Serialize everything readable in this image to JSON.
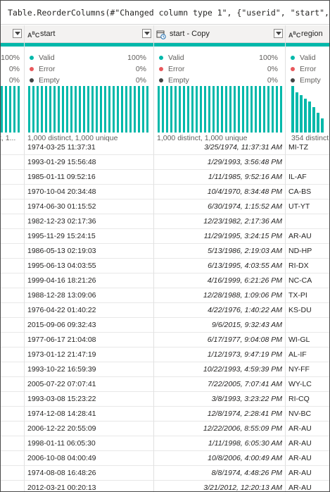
{
  "formula": "Table.ReorderColumns(#\"Changed column type 1\", {\"userid\", \"start\", \"s",
  "columns": [
    {
      "name": "",
      "type_label": "",
      "valid_label": "Valid",
      "valid_pct": "100%",
      "error_label": "Error",
      "error_pct": "0%",
      "empty_label": "Empty",
      "empty_pct": "0%",
      "distinct": "t, 1..."
    },
    {
      "name": "start",
      "type_label": "ABC",
      "valid_label": "Valid",
      "valid_pct": "100%",
      "error_label": "Error",
      "error_pct": "0%",
      "empty_label": "Empty",
      "empty_pct": "0%",
      "distinct": "1,000 distinct, 1,000 unique"
    },
    {
      "name": "start - Copy",
      "type_label": "",
      "valid_label": "Valid",
      "valid_pct": "100%",
      "error_label": "Error",
      "error_pct": "0%",
      "empty_label": "Empty",
      "empty_pct": "0%",
      "distinct": "1,000 distinct, 1,000 unique"
    },
    {
      "name": "region",
      "type_label": "ABC",
      "valid_label": "Valid",
      "valid_pct": "",
      "error_label": "Error",
      "error_pct": "",
      "empty_label": "Empty",
      "empty_pct": "",
      "distinct": "354 distinct"
    }
  ],
  "colors": {
    "valid": "#01b8aa",
    "error": "#e8585c",
    "empty": "#444444",
    "bar": "#01b8aa"
  },
  "region_hist_levels": [
    1.0,
    0.86,
    0.8,
    0.72,
    0.66,
    0.55,
    0.42,
    0.3
  ],
  "rows": [
    {
      "start": "1974-03-25 11:37:31",
      "copy": "3/25/1974, 11:37:31 AM",
      "region": "MI-TZ"
    },
    {
      "start": "1993-01-29 15:56:48",
      "copy": "1/29/1993, 3:56:48 PM",
      "region": ""
    },
    {
      "start": "1985-01-11 09:52:16",
      "copy": "1/11/1985, 9:52:16 AM",
      "region": "IL-AF"
    },
    {
      "start": "1970-10-04 20:34:48",
      "copy": "10/4/1970, 8:34:48 PM",
      "region": "CA-BS"
    },
    {
      "start": "1974-06-30 01:15:52",
      "copy": "6/30/1974, 1:15:52 AM",
      "region": "UT-YT"
    },
    {
      "start": "1982-12-23 02:17:36",
      "copy": "12/23/1982, 2:17:36 AM",
      "region": ""
    },
    {
      "start": "1995-11-29 15:24:15",
      "copy": "11/29/1995, 3:24:15 PM",
      "region": "AR-AU"
    },
    {
      "start": "1986-05-13 02:19:03",
      "copy": "5/13/1986, 2:19:03 AM",
      "region": "ND-HP"
    },
    {
      "start": "1995-06-13 04:03:55",
      "copy": "6/13/1995, 4:03:55 AM",
      "region": "RI-DX"
    },
    {
      "start": "1999-04-16 18:21:26",
      "copy": "4/16/1999, 6:21:26 PM",
      "region": "NC-CA"
    },
    {
      "start": "1988-12-28 13:09:06",
      "copy": "12/28/1988, 1:09:06 PM",
      "region": "TX-PI"
    },
    {
      "start": "1976-04-22 01:40:22",
      "copy": "4/22/1976, 1:40:22 AM",
      "region": "KS-DU"
    },
    {
      "start": "2015-09-06 09:32:43",
      "copy": "9/6/2015, 9:32:43 AM",
      "region": ""
    },
    {
      "start": "1977-06-17 21:04:08",
      "copy": "6/17/1977, 9:04:08 PM",
      "region": "WI-GL"
    },
    {
      "start": "1973-01-12 21:47:19",
      "copy": "1/12/1973, 9:47:19 PM",
      "region": "AL-IF"
    },
    {
      "start": "1993-10-22 16:59:39",
      "copy": "10/22/1993, 4:59:39 PM",
      "region": "NY-FF"
    },
    {
      "start": "2005-07-22 07:07:41",
      "copy": "7/22/2005, 7:07:41 AM",
      "region": "WY-LC"
    },
    {
      "start": "1993-03-08 15:23:22",
      "copy": "3/8/1993, 3:23:22 PM",
      "region": "RI-CQ"
    },
    {
      "start": "1974-12-08 14:28:41",
      "copy": "12/8/1974, 2:28:41 PM",
      "region": "NV-BC"
    },
    {
      "start": "2006-12-22 20:55:09",
      "copy": "12/22/2006, 8:55:09 PM",
      "region": "AR-AU"
    },
    {
      "start": "1998-01-11 06:05:30",
      "copy": "1/11/1998, 6:05:30 AM",
      "region": "AR-AU"
    },
    {
      "start": "2006-10-08 04:00:49",
      "copy": "10/8/2006, 4:00:49 AM",
      "region": "AR-AU"
    },
    {
      "start": "1974-08-08 16:48:26",
      "copy": "8/8/1974, 4:48:26 PM",
      "region": "AR-AU"
    },
    {
      "start": "2012-03-21 00:20:13",
      "copy": "3/21/2012, 12:20:13 AM",
      "region": "AR-AU"
    }
  ]
}
